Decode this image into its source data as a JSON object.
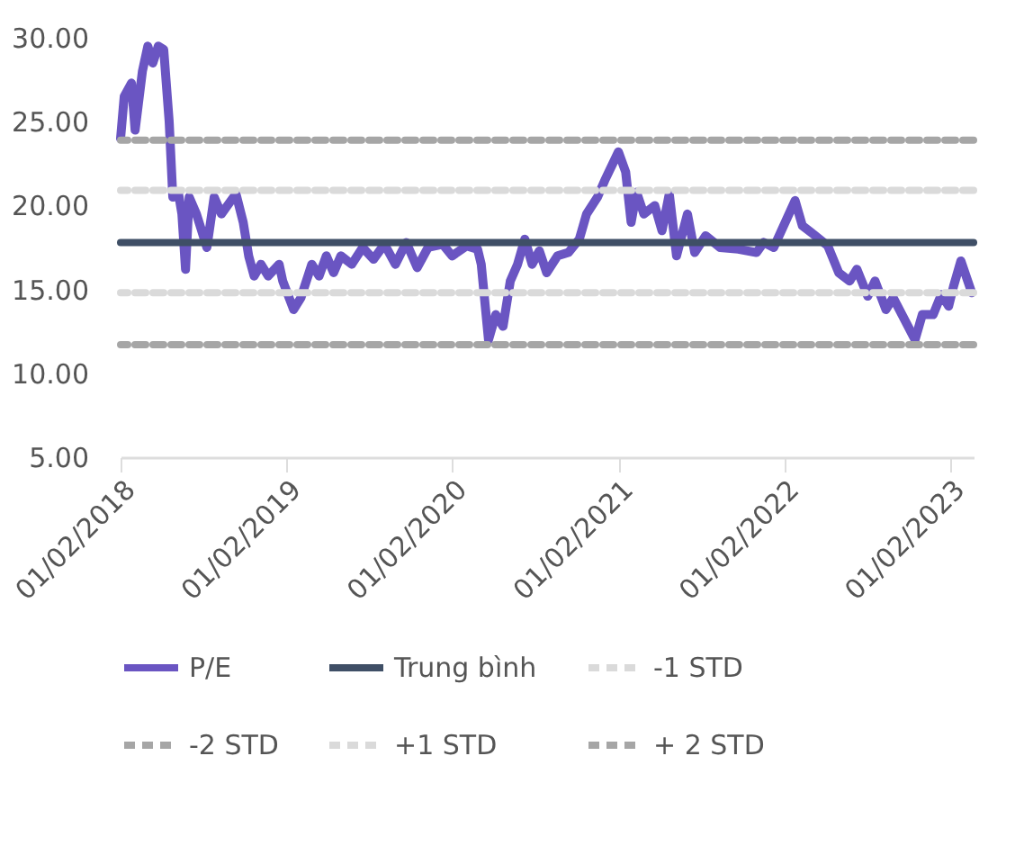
{
  "chart_data": {
    "type": "line",
    "x": [
      "2018-02-01",
      "2018-02-09",
      "2018-02-25",
      "2018-03-05",
      "2018-03-21",
      "2018-04-02",
      "2018-04-13",
      "2018-04-25",
      "2018-05-07",
      "2018-05-19",
      "2018-05-27",
      "2018-06-08",
      "2018-06-16",
      "2018-06-24",
      "2018-07-02",
      "2018-07-18",
      "2018-08-10",
      "2018-08-26",
      "2018-09-11",
      "2018-10-13",
      "2018-10-29",
      "2018-11-10",
      "2018-11-22",
      "2018-12-07",
      "2018-12-23",
      "2019-01-16",
      "2019-01-24",
      "2019-02-17",
      "2019-03-05",
      "2019-03-29",
      "2019-04-14",
      "2019-04-30",
      "2019-05-16",
      "2019-06-01",
      "2019-06-25",
      "2019-07-19",
      "2019-08-12",
      "2019-09-05",
      "2019-09-29",
      "2019-10-23",
      "2019-11-16",
      "2019-12-10",
      "2020-01-11",
      "2020-02-01",
      "2020-03-04",
      "2020-03-28",
      "2020-04-05",
      "2020-04-21",
      "2020-05-07",
      "2020-05-23",
      "2020-06-08",
      "2020-06-24",
      "2020-07-10",
      "2020-07-26",
      "2020-08-11",
      "2020-08-27",
      "2020-09-20",
      "2020-10-14",
      "2020-11-07",
      "2020-11-23",
      "2020-12-17",
      "2021-01-02",
      "2021-02-01",
      "2021-02-17",
      "2021-03-01",
      "2021-03-13",
      "2021-03-29",
      "2021-04-22",
      "2021-05-08",
      "2021-05-24",
      "2021-06-09",
      "2021-07-03",
      "2021-07-19",
      "2021-08-12",
      "2021-09-13",
      "2021-10-23",
      "2021-12-02",
      "2021-12-18",
      "2022-01-09",
      "2022-02-25",
      "2022-03-13",
      "2022-04-06",
      "2022-05-08",
      "2022-06-01",
      "2022-06-25",
      "2022-07-11",
      "2022-08-04",
      "2022-08-20",
      "2022-09-13",
      "2022-09-29",
      "2022-11-16",
      "2022-12-02",
      "2022-12-26",
      "2023-01-13",
      "2023-01-29",
      "2023-02-09",
      "2023-02-25",
      "2023-03-21"
    ],
    "series": [
      {
        "name": "P/E",
        "color": "#6a55c2",
        "values": [
          24,
          26.5,
          27.3,
          24.5,
          28,
          29.5,
          28.5,
          29.5,
          29.3,
          25,
          20.5,
          20.8,
          19.5,
          16.2,
          20.5,
          19.5,
          17.5,
          20.5,
          19.5,
          20.7,
          19,
          17,
          15.8,
          16.5,
          15.8,
          16.5,
          15.5,
          13.8,
          14.5,
          16.5,
          15.8,
          17,
          16,
          17,
          16.5,
          17.5,
          16.8,
          17.7,
          16.5,
          17.8,
          16.3,
          17.5,
          17.7,
          17,
          17.6,
          17.4,
          16.5,
          12,
          13.5,
          12.8,
          15.5,
          16.5,
          18,
          16.5,
          17.3,
          16,
          17,
          17.2,
          18,
          19.5,
          20.5,
          21.5,
          23.2,
          22,
          19,
          20.8,
          19.5,
          20,
          18.5,
          20.7,
          17,
          19.5,
          17.2,
          18.2,
          17.5,
          17.4,
          17.2,
          17.8,
          17.5,
          20.3,
          18.8,
          18.3,
          17.6,
          16,
          15.5,
          16.2,
          14.6,
          15.5,
          13.8,
          14.5,
          12,
          13.5,
          13.5,
          14.7,
          14,
          15.2,
          16.7,
          14.8
        ]
      }
    ],
    "ref_lines": [
      {
        "axis": "y",
        "value": 17.8,
        "label": "Trung bình",
        "color": "#3f4f66",
        "line_style": "solid"
      },
      {
        "axis": "y",
        "value": 14.8,
        "label": "-1 STD",
        "color": "#dadada",
        "line_style": "dashed"
      },
      {
        "axis": "y",
        "value": 11.7,
        "label": "-2 STD",
        "color": "#a6a6a6",
        "line_style": "dashed"
      },
      {
        "axis": "y",
        "value": 20.9,
        "label": "+1 STD",
        "color": "#dadada",
        "line_style": "dashed"
      },
      {
        "axis": "y",
        "value": 23.9,
        "label": "+ 2 STD",
        "color": "#a6a6a6",
        "line_style": "dashed"
      }
    ],
    "xlim": [
      "2018-02-01",
      "2023-03-25"
    ],
    "xticks": [
      {
        "value": "2018-02-01",
        "label": "01/02/2018"
      },
      {
        "value": "2019-02-01",
        "label": "01/02/2019"
      },
      {
        "value": "2020-02-01",
        "label": "01/02/2020"
      },
      {
        "value": "2021-02-01",
        "label": "01/02/2021"
      },
      {
        "value": "2022-02-01",
        "label": "01/02/2022"
      },
      {
        "value": "2023-02-01",
        "label": "01/02/2023"
      }
    ],
    "ylim": [
      5,
      30
    ],
    "yticks": [
      {
        "value": 5,
        "label": "5.00"
      },
      {
        "value": 10,
        "label": "10.00"
      },
      {
        "value": 15,
        "label": "15.00"
      },
      {
        "value": 20,
        "label": "20.00"
      },
      {
        "value": 25,
        "label": "25.00"
      },
      {
        "value": 30,
        "label": "30.00"
      }
    ],
    "grid": false,
    "legend": "bottom",
    "marker": "none",
    "line_style": "solid"
  }
}
